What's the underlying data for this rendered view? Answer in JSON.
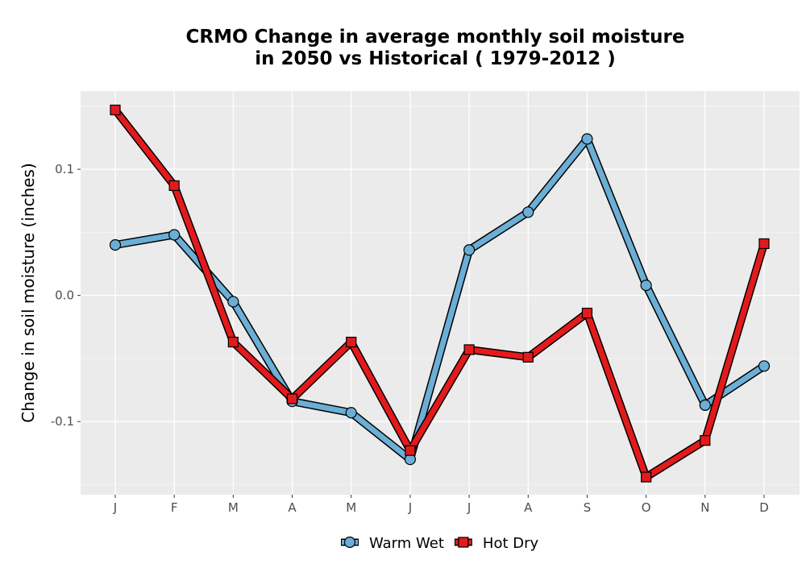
{
  "chart_data": {
    "type": "line",
    "title_line1": "CRMO  Change in average monthly soil moisture",
    "title_line2": "in 2050 vs Historical ( 1979-2012 )",
    "xlabel": "",
    "ylabel": "Change in soil moisture (inches)",
    "categories": [
      "J",
      "F",
      "M",
      "A",
      "M",
      "J",
      "J",
      "A",
      "S",
      "O",
      "N",
      "D"
    ],
    "yticks": [
      -0.1,
      0.0,
      0.1
    ],
    "ytick_labels": [
      "-0.1",
      "0.0",
      "0.1"
    ],
    "ylim": [
      -0.158,
      0.162
    ],
    "grid": true,
    "legend_position": "bottom",
    "series": [
      {
        "name": "Warm Wet",
        "color": "#6baed6",
        "marker": "circle",
        "values": [
          0.04,
          0.048,
          -0.005,
          -0.084,
          -0.093,
          -0.13,
          0.036,
          0.066,
          0.124,
          0.008,
          -0.087,
          -0.056
        ]
      },
      {
        "name": "Hot Dry",
        "color": "#e31a1c",
        "marker": "square",
        "values": [
          0.147,
          0.087,
          -0.037,
          -0.082,
          -0.037,
          -0.123,
          -0.043,
          -0.049,
          -0.014,
          -0.144,
          -0.115,
          0.041
        ]
      }
    ]
  }
}
